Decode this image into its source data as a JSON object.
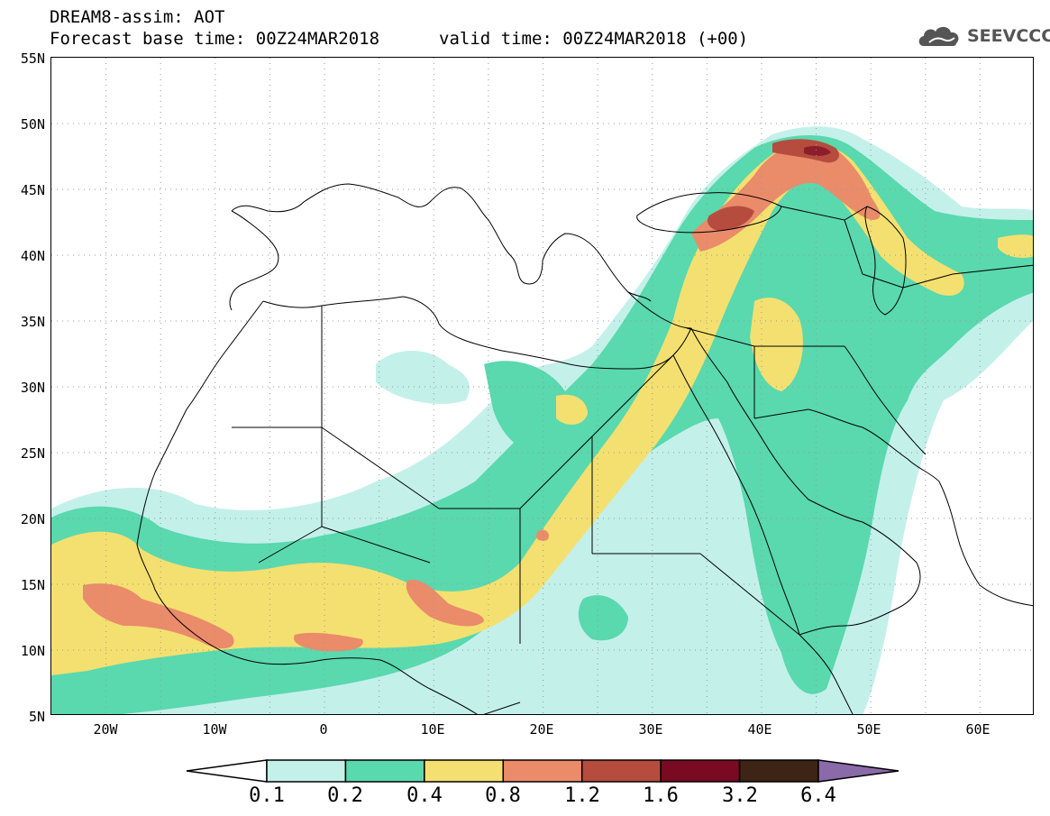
{
  "header": {
    "title_line1": "DREAM8-assim: AOT",
    "title_line2": "Forecast base time: 00Z24MAR2018",
    "valid_time": "valid time: 00Z24MAR2018 (+00)",
    "logo_text": "SEEVCCC"
  },
  "map": {
    "lat_labels": [
      "55N",
      "50N",
      "45N",
      "40N",
      "35N",
      "30N",
      "25N",
      "20N",
      "15N",
      "10N",
      "5N"
    ],
    "lon_labels": [
      "20W",
      "10W",
      "0",
      "10E",
      "20E",
      "30E",
      "40E",
      "50E",
      "60E"
    ],
    "lat_range": [
      5,
      55
    ],
    "lon_range": [
      -25,
      65
    ],
    "field": "AOT"
  },
  "colorbar": {
    "levels": [
      "0.1",
      "0.2",
      "0.4",
      "0.8",
      "1.2",
      "1.6",
      "3.2",
      "6.4"
    ],
    "colors": [
      "#c4f0ea",
      "#5ad8ae",
      "#f4e070",
      "#ea8b6a",
      "#b64c3e",
      "#7a0a22",
      "#3d2414",
      "#8a6aa8"
    ],
    "extend_low_color": "#ffffff"
  }
}
